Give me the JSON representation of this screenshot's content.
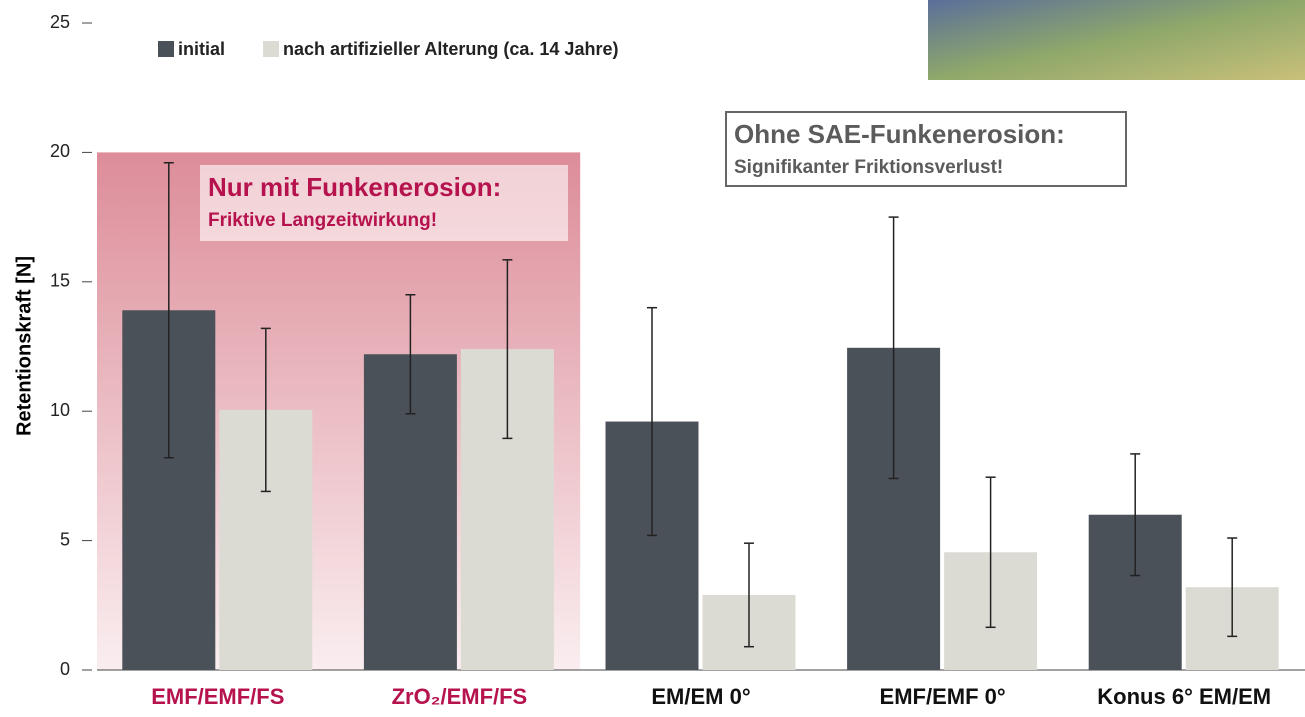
{
  "chart_data": {
    "type": "bar",
    "y_label": "Retentionskraft [N]",
    "categories": [
      "EMF/EMF/FS",
      "ZrO₂/EMF/FS",
      "EM/EM 0°",
      "EMF/EMF 0°",
      "Konus 6° EM/EM"
    ],
    "series": [
      {
        "name": "initial",
        "color": "#4b5159",
        "values": [
          13.9,
          12.2,
          9.6,
          12.45,
          6.0
        ],
        "errors": [
          5.7,
          2.3,
          4.4,
          5.05,
          2.35
        ]
      },
      {
        "name": "nach artifizieller Alterung (ca. 14 Jahre)",
        "color": "#dcdbd3",
        "values": [
          10.05,
          12.4,
          2.9,
          4.55,
          3.2
        ],
        "errors": [
          3.15,
          3.45,
          2.0,
          2.9,
          1.9
        ]
      }
    ],
    "ylim": [
      0,
      25
    ],
    "yticks": [
      0,
      5,
      10,
      15,
      20,
      25
    ],
    "grid": false,
    "legend": "top-left",
    "highlight": {
      "categories": [
        0,
        1
      ],
      "top": 20,
      "color": "#d4707f",
      "label_color": "#b5124e"
    },
    "annotations": [
      {
        "title": "Nur mit Funkenerosion:",
        "text": "Friktive Langzeitwirkung!"
      },
      {
        "title": "Ohne SAE-Funkenerosion:",
        "text": "Signifikanter Friktionsverlust!"
      }
    ]
  }
}
